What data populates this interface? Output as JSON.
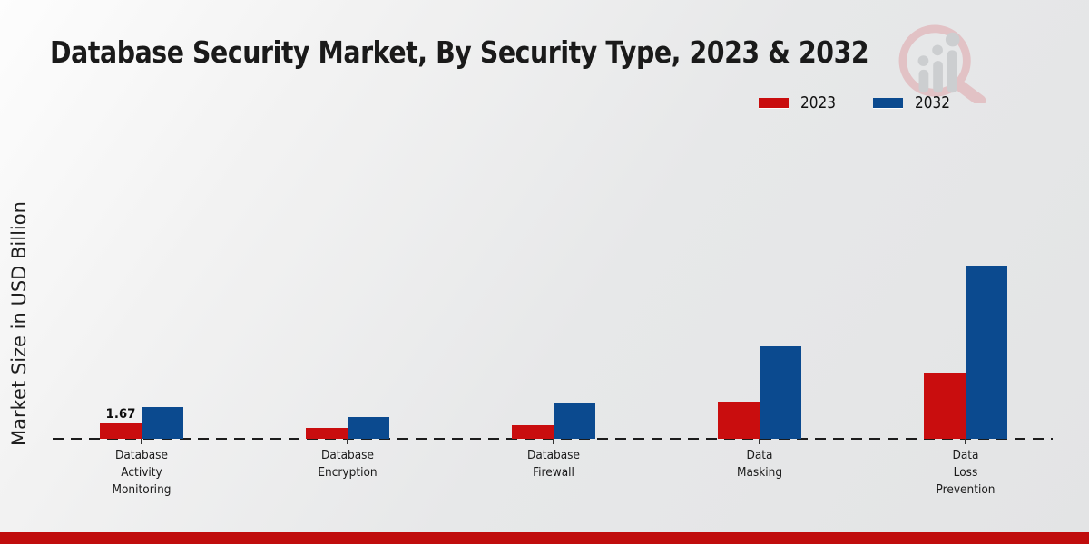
{
  "title": "Database Security Market, By Security Type, 2023 & 2032",
  "ylabel": "Market Size in USD Billion",
  "legend": {
    "position": "top-right",
    "items": [
      {
        "label": "2023",
        "color": "#c90d0e"
      },
      {
        "label": "2032",
        "color": "#0b4a8f"
      }
    ]
  },
  "logo_icon": "market-research-future-magnifier-growth-watermark",
  "footer": {
    "stripe_color": "#c00d0d"
  },
  "chart_data": {
    "type": "bar",
    "title": "Database Security Market, By Security Type, 2023 & 2032",
    "xlabel": "",
    "ylabel": "Market Size in USD Billion",
    "grid": false,
    "legend_position": "top-right",
    "baseline_style": "dashed",
    "ylim": [
      0,
      20
    ],
    "categories": [
      "Database Activity Monitoring",
      "Database Encryption",
      "Database Firewall",
      "Data Masking",
      "Data Loss Prevention"
    ],
    "categories_lines": [
      "Database\nActivity\nMonitoring",
      "Database\nEncryption",
      "Database\nFirewall",
      "Data\nMasking",
      "Data\nLoss\nPrevention"
    ],
    "series": [
      {
        "name": "2023",
        "color": "#c90d0e",
        "values": [
          1.67,
          1.2,
          1.5,
          4.0,
          7.2
        ],
        "value_labels": [
          "1.67",
          null,
          null,
          null,
          null
        ]
      },
      {
        "name": "2032",
        "color": "#0b4a8f",
        "values": [
          3.4,
          2.4,
          3.8,
          10.0,
          18.8
        ],
        "value_labels": [
          null,
          null,
          null,
          null,
          null
        ]
      }
    ]
  }
}
